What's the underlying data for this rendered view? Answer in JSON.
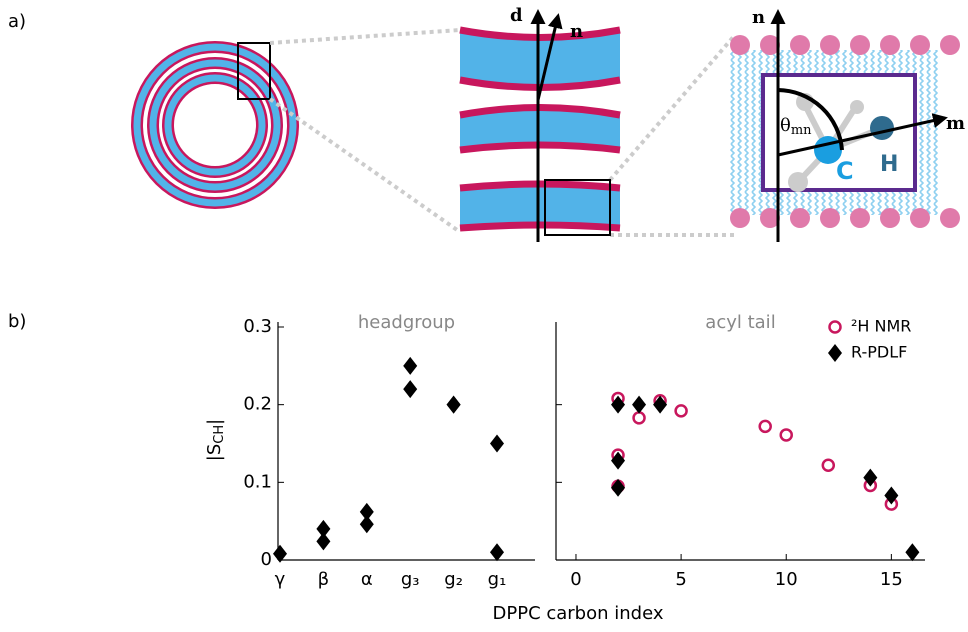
{
  "panel_labels": [
    "a)",
    "b)"
  ],
  "diagram": {
    "d_label": "d",
    "n_label_mid": "n",
    "n_label_right": "n",
    "m_label": "m",
    "theta_label": "θ",
    "theta_sub": "mn",
    "c_label": "C",
    "h_label": "H"
  },
  "figure": {
    "ylabel": [
      "|S",
      "CH",
      "|"
    ],
    "xlabel": "DPPC carbon index"
  },
  "chart_data": [
    {
      "type": "scatter",
      "title": "headgroup",
      "categories": [
        "γ",
        "β",
        "α",
        "g₃",
        "g₂",
        "g₁"
      ],
      "series": [
        {
          "color": "#000000",
          "marker": "diamond",
          "values": [
            0.008,
            0.024,
            0.046,
            0.22,
            0.2,
            0.15
          ]
        },
        {
          "color": "#000000",
          "marker": "diamond",
          "values": [
            null,
            0.04,
            0.062,
            0.25,
            0.2,
            0.01
          ]
        }
      ],
      "ylim": [
        0,
        0.3
      ],
      "yticks": [
        0,
        0.1,
        0.2,
        0.3
      ],
      "ytick_labels": true
    },
    {
      "type": "scatter",
      "title": "acyl tail",
      "series": [
        {
          "name": "²H NMR",
          "color": "#c8175d",
          "marker": "open-circle",
          "x": [
            2,
            2,
            2,
            3,
            4,
            5,
            9,
            10,
            12,
            14,
            15
          ],
          "values": [
            0.208,
            0.135,
            0.095,
            0.183,
            0.205,
            0.192,
            0.172,
            0.161,
            0.122,
            0.096,
            0.072
          ]
        },
        {
          "name": "R-PDLF",
          "color": "#000000",
          "marker": "diamond",
          "x": [
            2,
            2,
            2,
            3,
            4,
            14,
            15,
            16
          ],
          "values": [
            0.2,
            0.128,
            0.093,
            0.2,
            0.2,
            0.106,
            0.083,
            0.01
          ]
        }
      ],
      "xlim": [
        -0.95,
        16.6
      ],
      "xticks": [
        0,
        5,
        10,
        15
      ],
      "ylim": [
        0,
        0.3
      ],
      "yticks": [
        0.1,
        0.2
      ],
      "ytick_labels": false,
      "legend": "top-right"
    }
  ]
}
